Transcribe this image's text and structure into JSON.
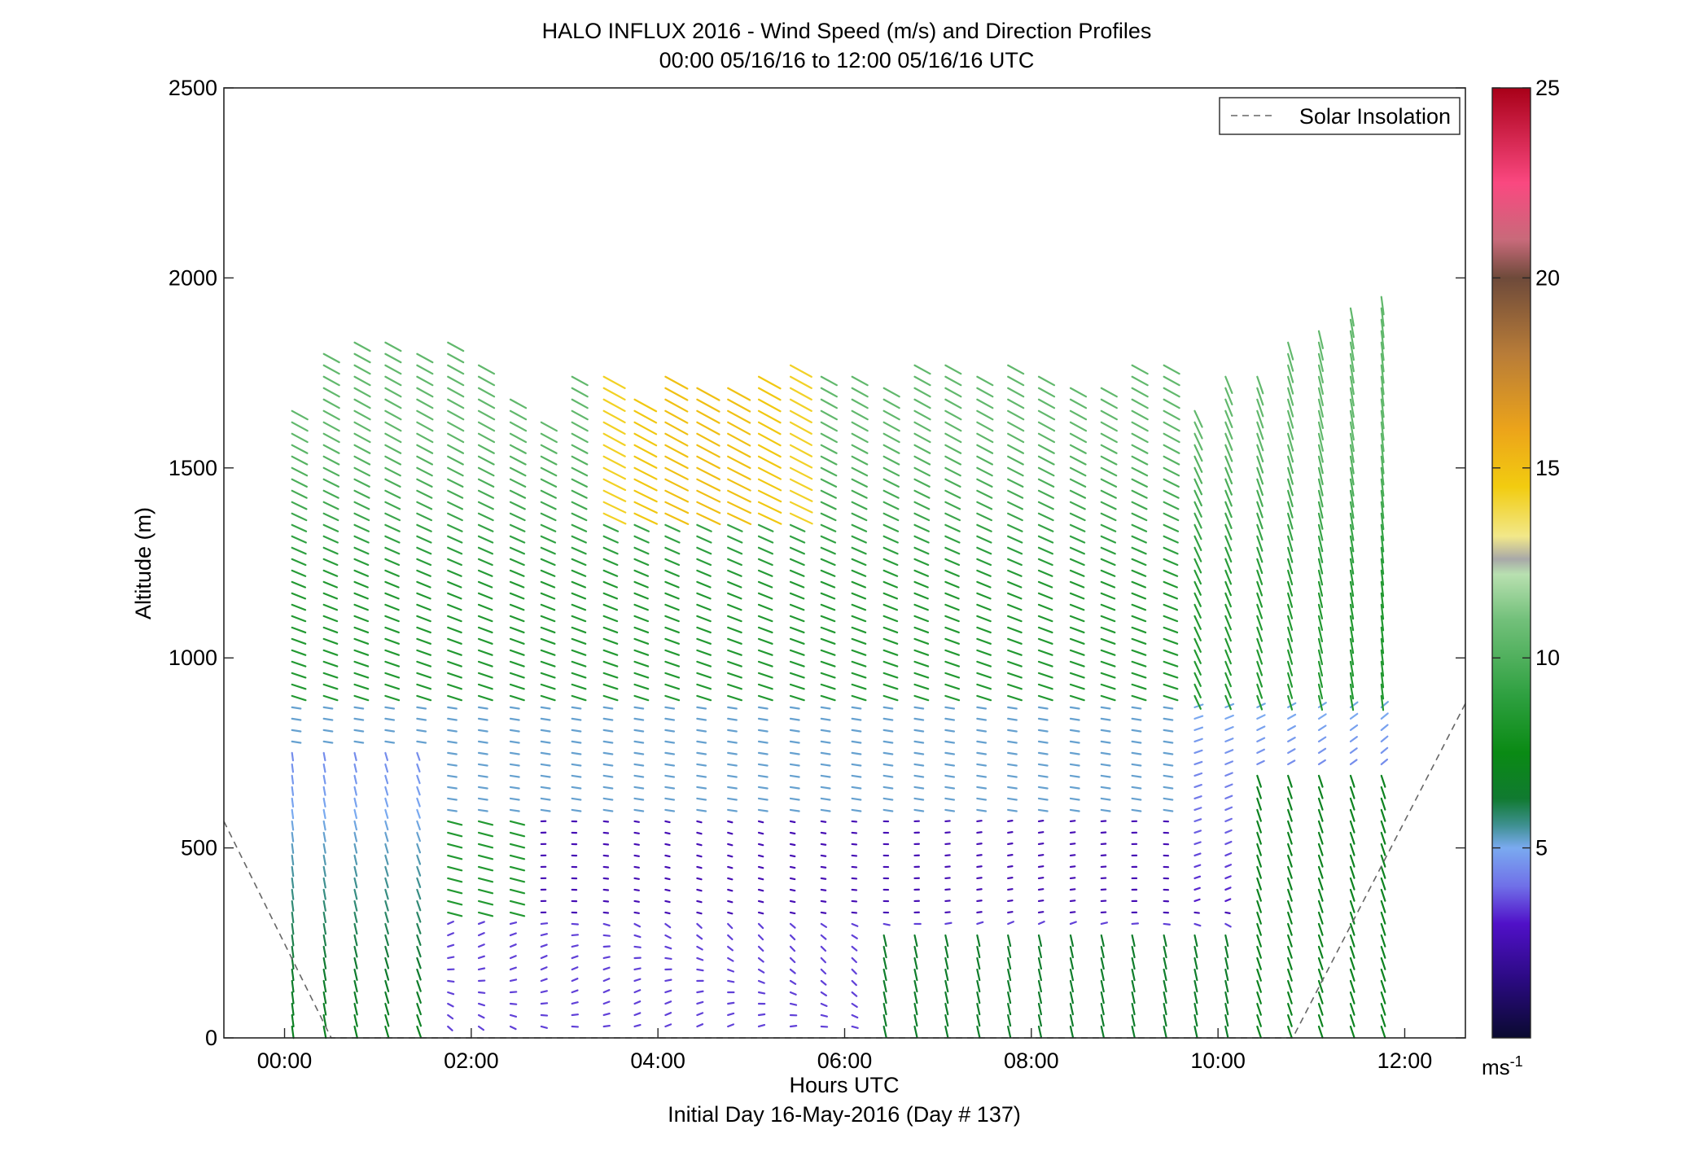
{
  "title": "HALO INFLUX 2016 - Wind Speed (m/s) and Direction Profiles",
  "subtitle": "00:00 05/16/16 to 12:00 05/16/16  UTC",
  "footer": "Initial Day 16-May-2016 (Day # 137)",
  "colorbar": {
    "unit_base": "ms",
    "unit_exp": "-1",
    "ticks": [
      "5",
      "10",
      "15",
      "20",
      "25"
    ],
    "range": [
      0,
      25
    ],
    "stops": [
      {
        "v": 0,
        "c": "#0a0a30"
      },
      {
        "v": 1.5,
        "c": "#2a0a80"
      },
      {
        "v": 3,
        "c": "#5010c8"
      },
      {
        "v": 4,
        "c": "#7070e8"
      },
      {
        "v": 5,
        "c": "#7aaaf0"
      },
      {
        "v": 5.6,
        "c": "#3e9090"
      },
      {
        "v": 6.3,
        "c": "#107a30"
      },
      {
        "v": 7.5,
        "c": "#0a8a14"
      },
      {
        "v": 9,
        "c": "#2ea040"
      },
      {
        "v": 11,
        "c": "#72c07a"
      },
      {
        "v": 12.2,
        "c": "#b8e0b0"
      },
      {
        "v": 12.6,
        "c": "#a8a8a8"
      },
      {
        "v": 13.2,
        "c": "#f2e88a"
      },
      {
        "v": 14.5,
        "c": "#f2cc10"
      },
      {
        "v": 16,
        "c": "#eca41a"
      },
      {
        "v": 18,
        "c": "#b87c38"
      },
      {
        "v": 20,
        "c": "#6e4a3a"
      },
      {
        "v": 21,
        "c": "#c86a7a"
      },
      {
        "v": 22.5,
        "c": "#fa4880"
      },
      {
        "v": 25,
        "c": "#a80018"
      }
    ]
  },
  "legend": {
    "label": "Solar Insolation",
    "line_color": "#666666",
    "style": "dashed",
    "placement": "top-right"
  },
  "chart_data": {
    "type": "wind-barb-profile",
    "xlabel": "Hours UTC",
    "ylabel": "Altitude (m)",
    "xlim": [
      -0.65,
      12.65
    ],
    "ylim": [
      0,
      2500
    ],
    "xticks": [
      {
        "v": 0,
        "label": "00:00"
      },
      {
        "v": 2,
        "label": "02:00"
      },
      {
        "v": 4,
        "label": "04:00"
      },
      {
        "v": 6,
        "label": "06:00"
      },
      {
        "v": 8,
        "label": "08:00"
      },
      {
        "v": 10,
        "label": "10:00"
      },
      {
        "v": 12,
        "label": "12:00"
      }
    ],
    "yticks": [
      {
        "v": 0,
        "label": "0"
      },
      {
        "v": 500,
        "label": "500"
      },
      {
        "v": 1000,
        "label": "1000"
      },
      {
        "v": 1500,
        "label": "1500"
      },
      {
        "v": 2000,
        "label": "2000"
      },
      {
        "v": 2500,
        "label": "2500"
      }
    ],
    "profile_times_h": [
      0.08,
      0.42,
      0.75,
      1.08,
      1.42,
      1.75,
      2.08,
      2.42,
      2.75,
      3.08,
      3.42,
      3.75,
      4.08,
      4.42,
      4.75,
      5.08,
      5.42,
      5.75,
      6.08,
      6.42,
      6.75,
      7.08,
      7.42,
      7.75,
      8.08,
      8.42,
      8.75,
      9.08,
      9.42,
      9.75,
      10.08,
      10.42,
      10.75,
      11.08,
      11.42,
      11.75
    ],
    "profile_tops_m": [
      1650,
      1810,
      1850,
      1830,
      1800,
      1830,
      1790,
      1690,
      1640,
      1760,
      1740,
      1700,
      1740,
      1730,
      1720,
      1740,
      1780,
      1750,
      1750,
      1720,
      1790,
      1780,
      1740,
      1790,
      1760,
      1720,
      1710,
      1790,
      1780,
      1660,
      1740,
      1740,
      1830,
      1880,
      1920,
      1960
    ],
    "altitude_step_m": 30,
    "vector_length_scale_h_per_ms": 0.018,
    "wind_regimes": [
      {
        "layer": "0-400 m",
        "hours": "00:00-01:30",
        "speed_ms": 7.5,
        "direction": "near vertical, green"
      },
      {
        "layer": "0-350 m",
        "hours": "01:30-06:30",
        "speed_ms": 3.5,
        "direction": "calm/variable, purple"
      },
      {
        "layer": "350-600 m",
        "hours": "03:00-10:00",
        "speed_ms": 2.5,
        "direction": "nearly horizontal, dark purple"
      },
      {
        "layer": "600-900 m",
        "hours": "all",
        "speed_ms": 5.0,
        "direction": "light blue, sloping"
      },
      {
        "layer": "900-1400 m",
        "hours": "all",
        "speed_ms": 9.0,
        "direction": "green, sloping down-right"
      },
      {
        "layer": "1350-1700 m",
        "hours": "03:30-05:30",
        "speed_ms": 14.5,
        "direction": "yellow/orange"
      }
    ],
    "series": [
      {
        "name": "Solar Insolation",
        "style": "dashed",
        "points": [
          [
            -0.65,
            570
          ],
          [
            0.5,
            0
          ],
          [
            10.8,
            0
          ],
          [
            12.65,
            880
          ]
        ]
      }
    ]
  }
}
